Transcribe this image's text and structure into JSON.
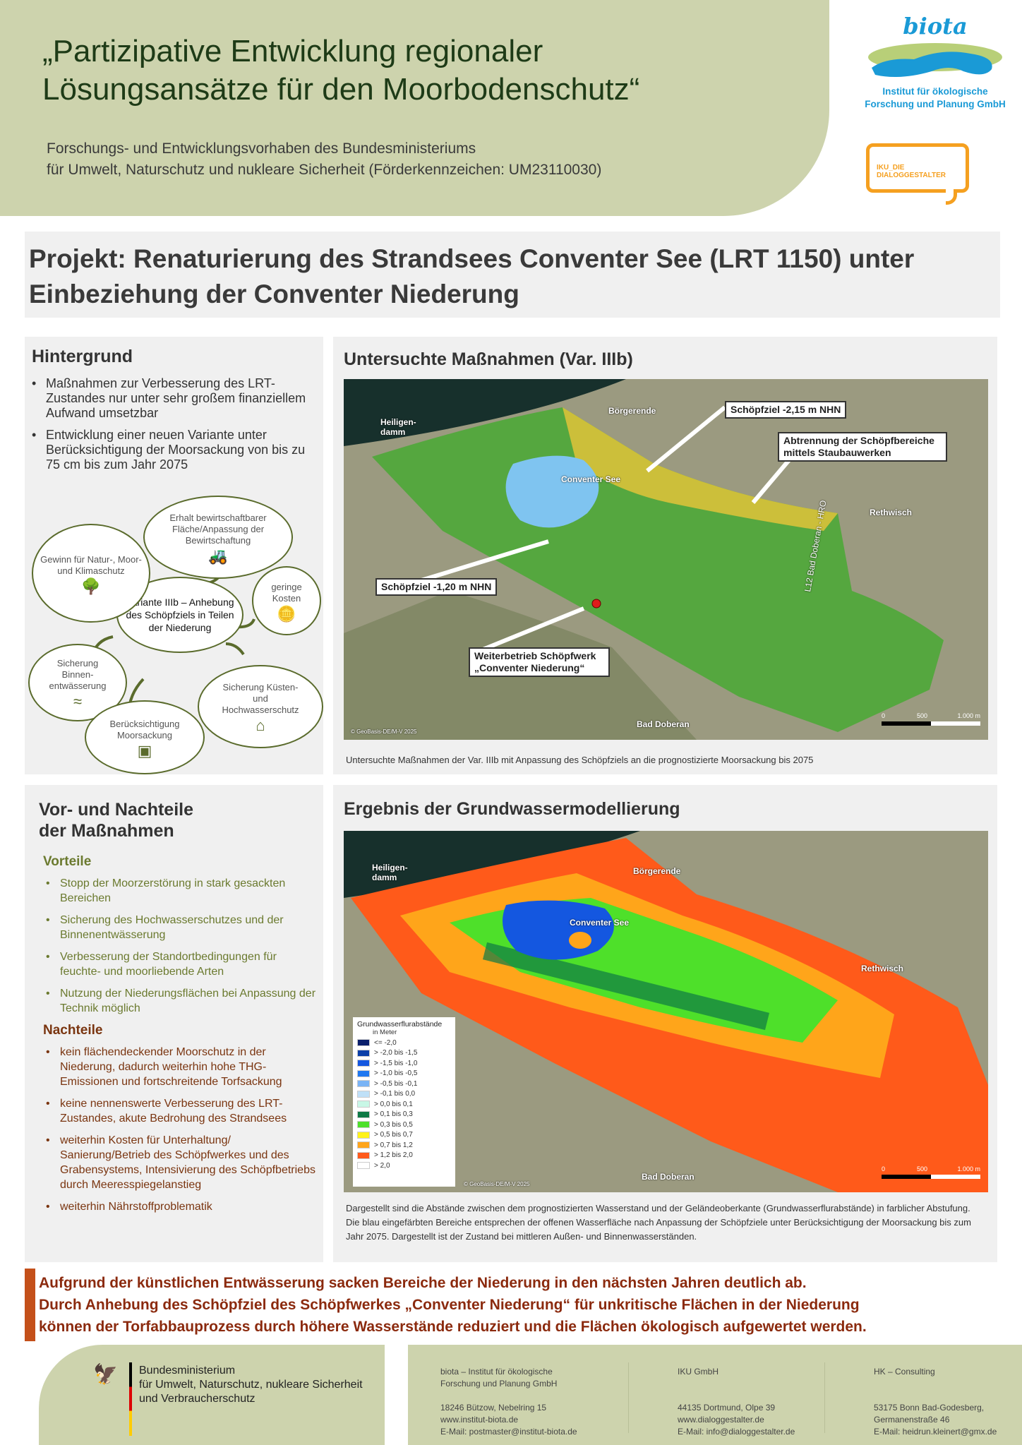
{
  "header": {
    "title_line1": "„Partizipative Entwicklung regionaler",
    "title_line2": "Lösungsansätze für den Moorbodenschutz“",
    "subtitle_line1": "Forschungs- und Entwicklungsvorhaben des Bundesministeriums",
    "subtitle_line2": "für Umwelt, Naturschutz und nukleare Sicherheit (Förderkennzeichen: UM23110030)"
  },
  "logos": {
    "biota_word": "biota",
    "biota_line1": "Institut für ökologische",
    "biota_line2": "Forschung und Planung GmbH",
    "iku": "IKU_DIE DIALOGGESTALTER"
  },
  "project": {
    "title_line1": "Projekt: Renaturierung des Strandsees Conventer See (LRT 1150) unter",
    "title_line2": "Einbeziehung der Conventer Niederung"
  },
  "hintergrund": {
    "heading": "Hintergrund",
    "bullets": [
      "Maßnahmen zur Verbesserung des LRT-Zustandes nur unter sehr großem finanziellem Aufwand umsetzbar",
      "Entwicklung einer neuen Variante unter Berücksichtigung der Moorsackung von bis zu 75 cm bis zum Jahr 2075"
    ],
    "diagram": {
      "center": "Variante IIIb – Anhebung des Schöpfziels in Teilen der Niederung",
      "nodes": [
        "Gewinn für Natur-, Moor- und Klimaschutz",
        "Erhalt bewirtschaftbarer Fläche/Anpassung der Bewirtschaftung",
        "geringe Kosten",
        "Sicherung Binnen-entwässerung",
        "Berücksichtigung Moorsackung",
        "Sicherung Küsten- und Hochwasserschutz"
      ]
    }
  },
  "map1": {
    "heading": "Untersuchte Maßnahmen (Var. IIIb)",
    "places": [
      "Heiligen-damm",
      "Börgerende",
      "Conventer See",
      "Rethwisch",
      "Bad Doberan"
    ],
    "road": "L12 Bad Doberan - HRO",
    "callouts": [
      "Schöpfziel -2,15 m NHN",
      "Abtrennung der Schöpfbereiche mittels Staubauwerken",
      "Schöpfziel -1,20 m NHN",
      "Weiterbetrieb Schöpfwerk „Conventer Niederung“"
    ],
    "copyright": "© GeoBasis-DE/M-V 2025",
    "scale": [
      "0",
      "500",
      "1.000 m"
    ],
    "caption": "Untersuchte Maßnahmen der Var. IIIb mit Anpassung des Schöpfziels an die prognostizierte Moorsackung bis 2075",
    "colors": {
      "green": "#4fa83a",
      "yellow": "#d9c23a",
      "lake": "#7fc4f0"
    }
  },
  "procon": {
    "heading": "Vor- und Nachteile der Maßnahmen",
    "vorteile_heading": "Vorteile",
    "vorteile": [
      "Stopp der Moorzerstörung in stark gesackten Bereichen",
      "Sicherung des Hochwasserschutzes und der Binnenentwässerung",
      "Verbesserung der Standortbedingungen für feuchte- und moorliebende Arten",
      "Nutzung der Niederungsflächen bei Anpassung der Technik möglich"
    ],
    "nachteile_heading": "Nachteile",
    "nachteile": [
      "kein flächendeckender Moorschutz in der Niederung, dadurch weiterhin hohe THG-Emissionen und fortschreitende Torfsackung",
      "keine nennenswerte Verbesserung des LRT-Zustandes, akute Bedrohung des Strandsees",
      "weiterhin Kosten für Unterhaltung/ Sanierung/Betrieb des Schöpfwerkes und des Grabensystems, Intensivierung des Schöpfbetriebs durch Meeresspiegelanstieg",
      "weiterhin Nährstoffproblematik"
    ],
    "colors": {
      "vorteile": "#6b7a2f",
      "nachteile": "#7a3510"
    }
  },
  "map2": {
    "heading": "Ergebnis der Grundwassermodellierung",
    "places": [
      "Heiligen-damm",
      "Börgerende",
      "Conventer See",
      "Rethwisch",
      "Bad Doberan"
    ],
    "legend_title": "Grundwasserflurabstände",
    "legend_unit": "in Meter",
    "legend": [
      {
        "label": "<= -2,0",
        "color": "#0a1f6b"
      },
      {
        "label": "> -2,0 bis -1,5",
        "color": "#0b3fa8"
      },
      {
        "label": "> -1,5 bis -1,0",
        "color": "#1457e0"
      },
      {
        "label": "> -1,0 bis -0,5",
        "color": "#1f78f0"
      },
      {
        "label": "> -0,5 bis -0,1",
        "color": "#7ab4f5"
      },
      {
        "label": "> -0,1 bis 0,0",
        "color": "#bfe0f7"
      },
      {
        "label": "> 0,0 bis 0,1",
        "color": "#c8f7e6"
      },
      {
        "label": "> 0,1 bis 0,3",
        "color": "#0e7a45"
      },
      {
        "label": "> 0,3 bis 0,5",
        "color": "#4ee02a"
      },
      {
        "label": "> 0,5 bis 0,7",
        "color": "#fff21a"
      },
      {
        "label": "> 0,7 bis 1,2",
        "color": "#ffa51a"
      },
      {
        "label": "> 1,2 bis 2,0",
        "color": "#ff5a1a"
      },
      {
        "label": "> 2,0",
        "color": "#ffffff"
      }
    ],
    "copyright": "© GeoBasis-DE/M-V 2025",
    "scale": [
      "0",
      "500",
      "1.000 m"
    ],
    "caption": "Dargestellt sind die Abstände zwischen dem prognostizierten Wasserstand und der Geländeoberkante (Grundwasserflurabstände) in farblicher Abstufung. Die blau eingefärbten Bereiche entsprechen der offenen Wasserfläche nach Anpassung der Schöpfziele unter Berücksichtigung der Moorsackung bis zum Jahr 2075. Dargestellt ist der Zustand bei mittleren Außen- und Binnenwasserständen."
  },
  "conclusion": {
    "line1": "Aufgrund der künstlichen Entwässerung sacken Bereiche der Niederung in den nächsten Jahren deutlich ab.",
    "line2": "Durch Anhebung des Schöpfziel des Schöpfwerkes „Conventer Niederung“ für unkritische Flächen in der Niederung",
    "line3": "können der Torfabbauprozess durch höhere Wasserstände reduziert und die Flächen ökologisch aufgewertet werden."
  },
  "footer": {
    "ministry": [
      "Bundesministerium",
      "für Umwelt, Naturschutz, nukleare Sicherheit",
      "und Verbraucherschutz"
    ],
    "partners": [
      {
        "name": [
          "biota – Institut für ökologische",
          "Forschung und Planung GmbH"
        ],
        "address": [
          "18246 Bützow, Nebelring 15",
          "www.institut-biota.de",
          "E-Mail: postmaster@institut-biota.de"
        ]
      },
      {
        "name": [
          "IKU GmbH",
          ""
        ],
        "address": [
          "44135 Dortmund, Olpe 39",
          "www.dialoggestalter.de",
          "E-Mail: info@dialoggestalter.de"
        ]
      },
      {
        "name": [
          "HK – Consulting",
          ""
        ],
        "address": [
          "53175 Bonn Bad-Godesberg,",
          "Germanenstraße 46",
          "E-Mail: heidrun.kleinert@gmx.de"
        ]
      }
    ]
  }
}
